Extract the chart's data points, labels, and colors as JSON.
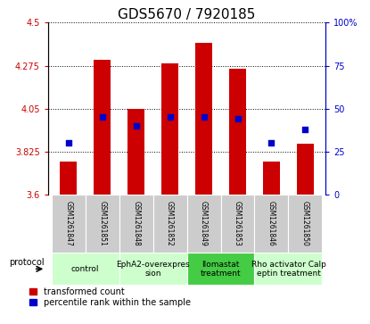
{
  "title": "GDS5670 / 7920185",
  "samples": [
    "GSM1261847",
    "GSM1261851",
    "GSM1261848",
    "GSM1261852",
    "GSM1261849",
    "GSM1261853",
    "GSM1261846",
    "GSM1261850"
  ],
  "transformed_counts": [
    3.77,
    4.305,
    4.05,
    4.285,
    4.395,
    4.26,
    3.77,
    3.865
  ],
  "percentile_ranks": [
    30,
    45,
    40,
    45,
    45,
    44,
    30,
    38
  ],
  "ylim_left": [
    3.6,
    4.5
  ],
  "ylim_right": [
    0,
    100
  ],
  "yticks_left": [
    3.6,
    3.825,
    4.05,
    4.275,
    4.5
  ],
  "yticks_right": [
    0,
    25,
    50,
    75,
    100
  ],
  "bar_color": "#cc0000",
  "dot_color": "#0000cc",
  "bar_bottom": 3.6,
  "groups": [
    {
      "label": "control",
      "indices": [
        0,
        1
      ],
      "color": "#ccffcc"
    },
    {
      "label": "EphA2-overexpres\nsion",
      "indices": [
        2,
        3
      ],
      "color": "#ccffcc"
    },
    {
      "label": "Ilomastat\ntreatment",
      "indices": [
        4,
        5
      ],
      "color": "#44cc44"
    },
    {
      "label": "Rho activator Calp\neptin treatment",
      "indices": [
        6,
        7
      ],
      "color": "#ccffcc"
    }
  ],
  "legend_bar_label": "transformed count",
  "legend_dot_label": "percentile rank within the sample",
  "protocol_label": "protocol",
  "bar_width": 0.5,
  "dot_size": 20,
  "background_color": "#ffffff",
  "plot_bg_color": "#ffffff",
  "left_tick_color": "#cc0000",
  "right_tick_color": "#0000cc",
  "sample_bg_color": "#cccccc",
  "title_fontsize": 11,
  "tick_fontsize": 7,
  "sample_fontsize": 5.5,
  "group_fontsize": 6.5,
  "legend_fontsize": 7
}
